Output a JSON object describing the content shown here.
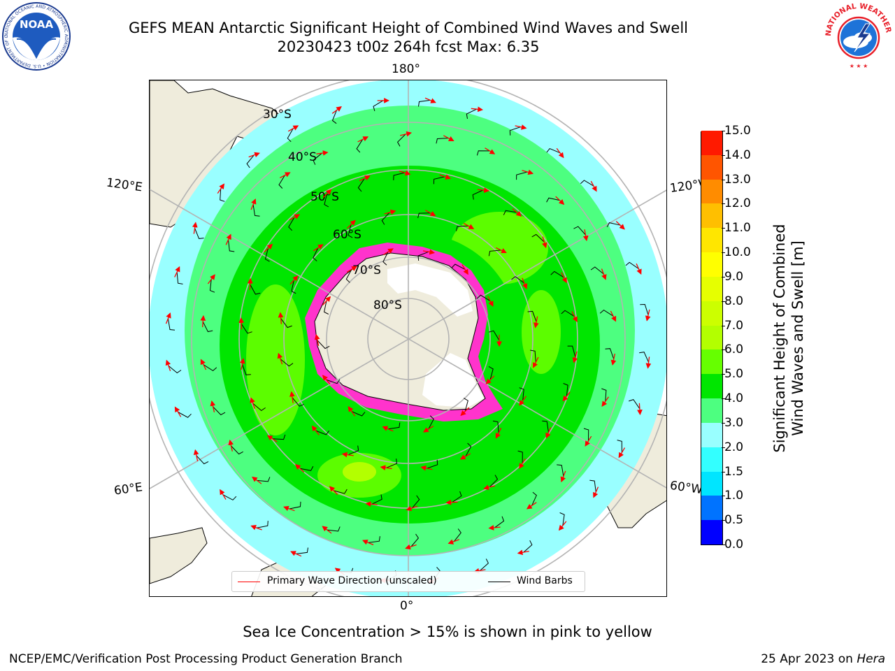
{
  "title": {
    "line1": "GEFS MEAN Antarctic Significant Height of Combined Wind Waves and Swell",
    "line2": "20230423 t00z 264h fcst   Max: 6.35"
  },
  "logos": {
    "noaa_text": "NOAA",
    "noaa_ring": "NATIONAL OCEANIC AND ATMOSPHERIC ADMINISTRATION • U.S. DEPARTMENT OF COMMERCE",
    "nws_ring": "NATIONAL WEATHER SERVICE"
  },
  "map": {
    "projection": "south-polar-stereographic",
    "longitude_labels": {
      "top": "180°",
      "bottom": "0°",
      "upper_left": "120°E",
      "upper_right": "120°W",
      "lower_left": "60°E",
      "lower_right": "60°W"
    },
    "latitude_labels": [
      "30°S",
      "40°S",
      "50°S",
      "60°S",
      "70°S",
      "80°S"
    ],
    "colors": {
      "land": "#efecdc",
      "ice_sheet": "#ffffff",
      "grid": "#b3b3b3",
      "arrow": "#ff0000",
      "barb": "#000000",
      "sea_ice": "#ff33cc"
    }
  },
  "colorbar": {
    "label_line1": "Significant Height of Combined",
    "label_line2": "Wind Waves and Swell [m]",
    "ticks": [
      "0.0",
      "0.5",
      "1.0",
      "1.5",
      "2.0",
      "3.0",
      "4.0",
      "5.0",
      "6.0",
      "7.0",
      "8.0",
      "9.0",
      "10.0",
      "11.0",
      "12.0",
      "13.0",
      "14.0",
      "15.0"
    ],
    "colors": [
      "#0000ff",
      "#0073ff",
      "#00e5ff",
      "#33ffff",
      "#99ffff",
      "#4dff80",
      "#00e600",
      "#66ff00",
      "#b3ff00",
      "#ccff00",
      "#e6ff00",
      "#ffff00",
      "#ffe600",
      "#ffbf00",
      "#ff8c00",
      "#ff5500",
      "#ff1a00"
    ]
  },
  "legend": {
    "primary_wave": "Primary Wave Direction (unscaled)",
    "wind_barbs": "Wind Barbs"
  },
  "ice_note": "Sea Ice Concentration > 15% is shown in pink to yellow",
  "footer": {
    "left": "NCEP/EMC/Verification Post Processing Product Generation Branch",
    "date": "25 Apr 2023 on ",
    "host": "Hera"
  }
}
